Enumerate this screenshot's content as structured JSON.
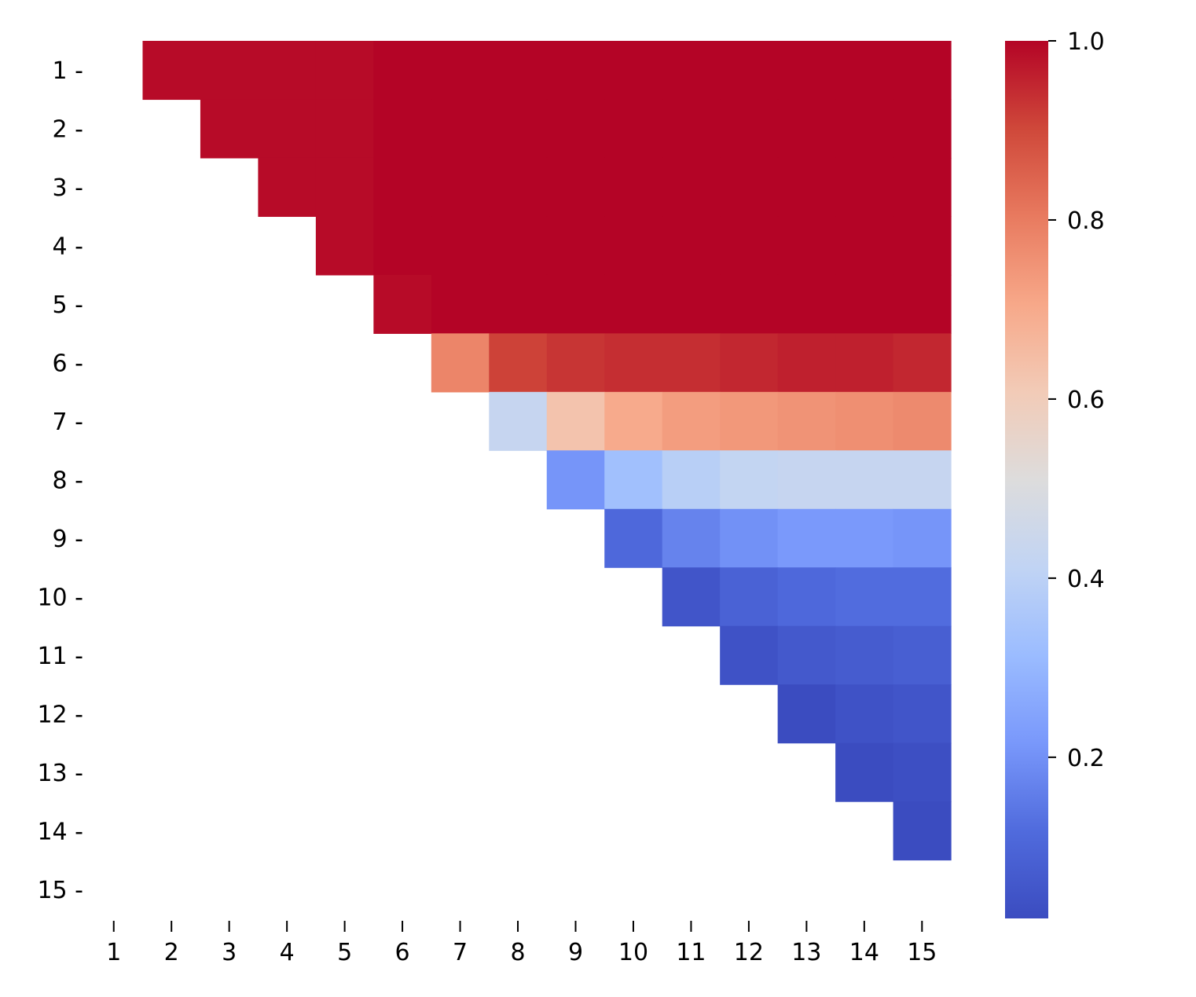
{
  "chart_data": {
    "type": "heatmap",
    "title": "",
    "xlabel": "",
    "ylabel": "",
    "row_labels": [
      "1",
      "2",
      "3",
      "4",
      "5",
      "6",
      "7",
      "8",
      "9",
      "10",
      "11",
      "12",
      "13",
      "14",
      "15"
    ],
    "col_labels": [
      "1",
      "2",
      "3",
      "4",
      "5",
      "6",
      "7",
      "8",
      "9",
      "10",
      "11",
      "12",
      "13",
      "14",
      "15"
    ],
    "mask": "lower triangle and diagonal empty (cells shown only where column > row)",
    "values": [
      [
        null,
        0.99,
        0.99,
        0.99,
        0.99,
        1.0,
        1.0,
        1.0,
        1.0,
        1.0,
        1.0,
        1.0,
        1.0,
        1.0,
        1.0
      ],
      [
        null,
        null,
        0.99,
        0.99,
        0.99,
        1.0,
        1.0,
        1.0,
        1.0,
        1.0,
        1.0,
        1.0,
        1.0,
        1.0,
        1.0
      ],
      [
        null,
        null,
        null,
        0.99,
        0.99,
        1.0,
        1.0,
        1.0,
        1.0,
        1.0,
        1.0,
        1.0,
        1.0,
        1.0,
        1.0
      ],
      [
        null,
        null,
        null,
        null,
        0.99,
        1.0,
        1.0,
        1.0,
        1.0,
        1.0,
        1.0,
        1.0,
        1.0,
        1.0,
        1.0
      ],
      [
        null,
        null,
        null,
        null,
        null,
        0.99,
        1.0,
        1.0,
        1.0,
        1.0,
        1.0,
        1.0,
        1.0,
        1.0,
        1.0
      ],
      [
        null,
        null,
        null,
        null,
        null,
        null,
        0.78,
        0.91,
        0.93,
        0.94,
        0.94,
        0.95,
        0.96,
        0.96,
        0.95
      ],
      [
        null,
        null,
        null,
        null,
        null,
        null,
        null,
        0.43,
        0.63,
        0.7,
        0.73,
        0.74,
        0.75,
        0.76,
        0.77
      ],
      [
        null,
        null,
        null,
        null,
        null,
        null,
        null,
        null,
        0.21,
        0.33,
        0.39,
        0.42,
        0.43,
        0.43,
        0.43
      ],
      [
        null,
        null,
        null,
        null,
        null,
        null,
        null,
        null,
        null,
        0.11,
        0.17,
        0.2,
        0.22,
        0.22,
        0.21
      ],
      [
        null,
        null,
        null,
        null,
        null,
        null,
        null,
        null,
        null,
        null,
        0.05,
        0.09,
        0.11,
        0.12,
        0.12
      ],
      [
        null,
        null,
        null,
        null,
        null,
        null,
        null,
        null,
        null,
        null,
        null,
        0.04,
        0.06,
        0.07,
        0.08
      ],
      [
        null,
        null,
        null,
        null,
        null,
        null,
        null,
        null,
        null,
        null,
        null,
        null,
        0.02,
        0.04,
        0.05
      ],
      [
        null,
        null,
        null,
        null,
        null,
        null,
        null,
        null,
        null,
        null,
        null,
        null,
        null,
        0.02,
        0.03
      ],
      [
        null,
        null,
        null,
        null,
        null,
        null,
        null,
        null,
        null,
        null,
        null,
        null,
        null,
        null,
        0.02
      ],
      [
        null,
        null,
        null,
        null,
        null,
        null,
        null,
        null,
        null,
        null,
        null,
        null,
        null,
        null,
        null
      ]
    ],
    "colormap": "coolwarm",
    "colorbar": {
      "range": [
        0.02,
        1.0
      ],
      "ticks": [
        0.2,
        0.4,
        0.6,
        0.8,
        1.0
      ],
      "tick_labels": [
        "0.2",
        "0.4",
        "0.6",
        "0.8",
        "1.0"
      ]
    },
    "grid": false
  }
}
